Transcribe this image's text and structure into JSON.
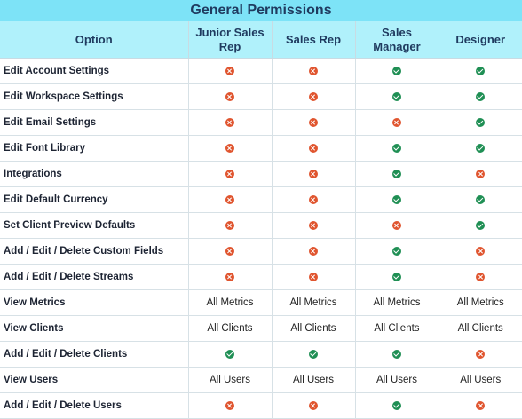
{
  "title": "General Permissions",
  "columns": [
    "Option",
    "Junior Sales Rep",
    "Sales Rep",
    "Sales Manager",
    "Designer"
  ],
  "rows": [
    {
      "option": "Edit Account Settings",
      "values": [
        "no",
        "no",
        "yes",
        "yes"
      ]
    },
    {
      "option": "Edit Workspace Settings",
      "values": [
        "no",
        "no",
        "yes",
        "yes"
      ]
    },
    {
      "option": "Edit Email Settings",
      "values": [
        "no",
        "no",
        "no",
        "yes"
      ]
    },
    {
      "option": "Edit Font Library",
      "values": [
        "no",
        "no",
        "yes",
        "yes"
      ]
    },
    {
      "option": "Integrations",
      "values": [
        "no",
        "no",
        "yes",
        "no"
      ]
    },
    {
      "option": "Edit Default Currency",
      "values": [
        "no",
        "no",
        "yes",
        "yes"
      ]
    },
    {
      "option": "Set Client Preview Defaults",
      "values": [
        "no",
        "no",
        "no",
        "yes"
      ]
    },
    {
      "option": "Add / Edit / Delete Custom Fields",
      "values": [
        "no",
        "no",
        "yes",
        "no"
      ]
    },
    {
      "option": "Add / Edit / Delete Streams",
      "values": [
        "no",
        "no",
        "yes",
        "no"
      ]
    },
    {
      "option": "View Metrics",
      "values": [
        "All Metrics",
        "All Metrics",
        "All Metrics",
        "All Metrics"
      ]
    },
    {
      "option": "View Clients",
      "values": [
        "All Clients",
        "All Clients",
        "All Clients",
        "All Clients"
      ]
    },
    {
      "option": "Add / Edit / Delete Clients",
      "values": [
        "yes",
        "yes",
        "yes",
        "no"
      ]
    },
    {
      "option": "View Users",
      "values": [
        "All Users",
        "All Users",
        "All Users",
        "All Users"
      ]
    },
    {
      "option": "Add / Edit / Delete Users",
      "values": [
        "no",
        "no",
        "yes",
        "no"
      ]
    }
  ],
  "icons": {
    "yes": "check-circle-icon",
    "no": "x-circle-icon"
  },
  "colors": {
    "title_bg": "#7de3f7",
    "header_bg": "#b0f1fb",
    "yes": "#1f8f54",
    "no": "#e0552f"
  }
}
